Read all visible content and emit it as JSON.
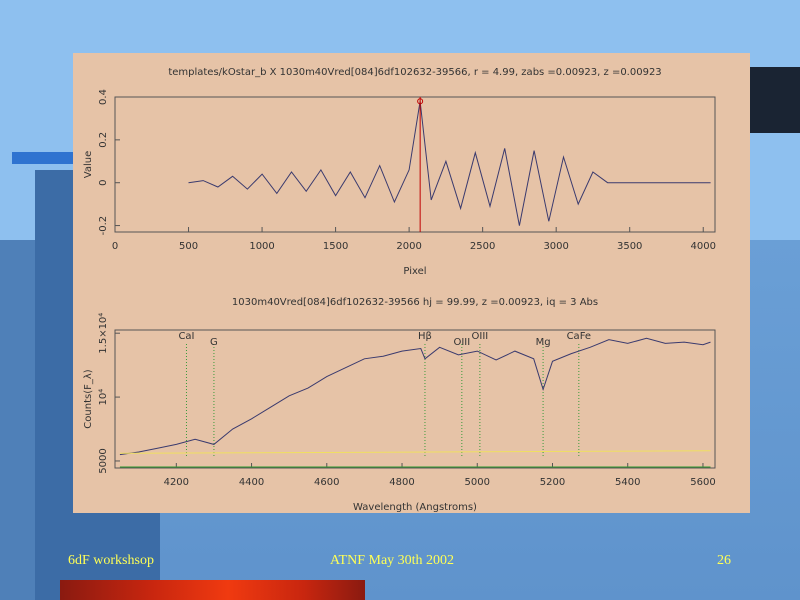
{
  "chart_data": [
    {
      "type": "line",
      "title": "templates/kOstar_b X 1030m40Vred[084]6df102632-39566, r =  4.99, zabs =0.00923, z =0.00923",
      "xlabel": "Pixel",
      "ylabel": "Value",
      "xlim": [
        0,
        4080
      ],
      "ylim": [
        -0.23,
        0.4
      ],
      "xticks": [
        0,
        500,
        1000,
        1500,
        2000,
        2500,
        3000,
        3500,
        4000
      ],
      "yticks": [
        -0.2,
        0,
        0.2,
        0.4
      ],
      "series": [
        {
          "color": "#3a3a6e",
          "x": [
            500,
            600,
            700,
            800,
            900,
            1000,
            1100,
            1200,
            1300,
            1400,
            1500,
            1600,
            1700,
            1800,
            1900,
            2000,
            2075,
            2150,
            2250,
            2350,
            2450,
            2550,
            2650,
            2750,
            2850,
            2950,
            3050,
            3150,
            3250,
            3350,
            4050
          ],
          "values": [
            0,
            0.01,
            -0.02,
            0.03,
            -0.03,
            0.04,
            -0.05,
            0.05,
            -0.04,
            0.06,
            -0.06,
            0.05,
            -0.07,
            0.08,
            -0.09,
            0.06,
            0.38,
            -0.08,
            0.1,
            -0.12,
            0.14,
            -0.11,
            0.16,
            -0.2,
            0.15,
            -0.18,
            0.12,
            -0.1,
            0.05,
            0,
            0
          ]
        }
      ],
      "peak": {
        "x": 2075,
        "y": 0.38,
        "color": "#c00000"
      }
    },
    {
      "type": "line",
      "title": "1030m40Vred[084]6df102632-39566        hj = 99.99, z =0.00923, iq =  3 Abs",
      "xlabel": "Wavelength (Angstroms)",
      "ylabel": "Counts(F_λ)",
      "xlim": [
        4037,
        5632
      ],
      "ylim": [
        4450,
        15250
      ],
      "xticks": [
        4200,
        4400,
        4600,
        4800,
        5000,
        5200,
        5400,
        5600
      ],
      "yticks": [
        {
          "value": 5000,
          "label": "5000"
        },
        {
          "value": 10000,
          "label": "10⁴"
        },
        {
          "value": 15000,
          "label": "1.5×10⁴"
        }
      ],
      "series": [
        {
          "color": "#3a3a6e",
          "x": [
            4050,
            4100,
            4150,
            4200,
            4250,
            4300,
            4350,
            4400,
            4450,
            4500,
            4550,
            4600,
            4650,
            4700,
            4750,
            4800,
            4850,
            4861,
            4900,
            4950,
            5000,
            5050,
            5100,
            5150,
            5175,
            5200,
            5250,
            5300,
            5350,
            5400,
            5450,
            5500,
            5550,
            5600,
            5620
          ],
          "values": [
            5500,
            5700,
            6000,
            6300,
            6700,
            6300,
            7500,
            8300,
            9200,
            10100,
            10700,
            11600,
            12300,
            13000,
            13200,
            13600,
            13800,
            13000,
            13900,
            13300,
            13600,
            12900,
            13600,
            13000,
            10600,
            12800,
            13400,
            13900,
            14500,
            14200,
            14600,
            14200,
            14300,
            14100,
            14300
          ]
        },
        {
          "color": "#f0e060",
          "x": [
            4050,
            5620
          ],
          "values": [
            5600,
            5800
          ]
        },
        {
          "color": "#2e9a2e",
          "x": [
            4050,
            5620
          ],
          "values": [
            4530,
            4530
          ]
        }
      ],
      "lines": [
        {
          "label": "CaI",
          "x": 4227
        },
        {
          "label": "G",
          "x": 4300
        },
        {
          "label": "Hβ",
          "x": 4861
        },
        {
          "label": "OIII",
          "x": 4959
        },
        {
          "label": "OIII",
          "x": 5007
        },
        {
          "label": "Mg",
          "x": 5175
        },
        {
          "label": "CaFe",
          "x": 5270
        }
      ]
    }
  ],
  "footer": {
    "left": "6dF workshsop",
    "center": "ATNF May 30th 2002",
    "page": "26"
  }
}
